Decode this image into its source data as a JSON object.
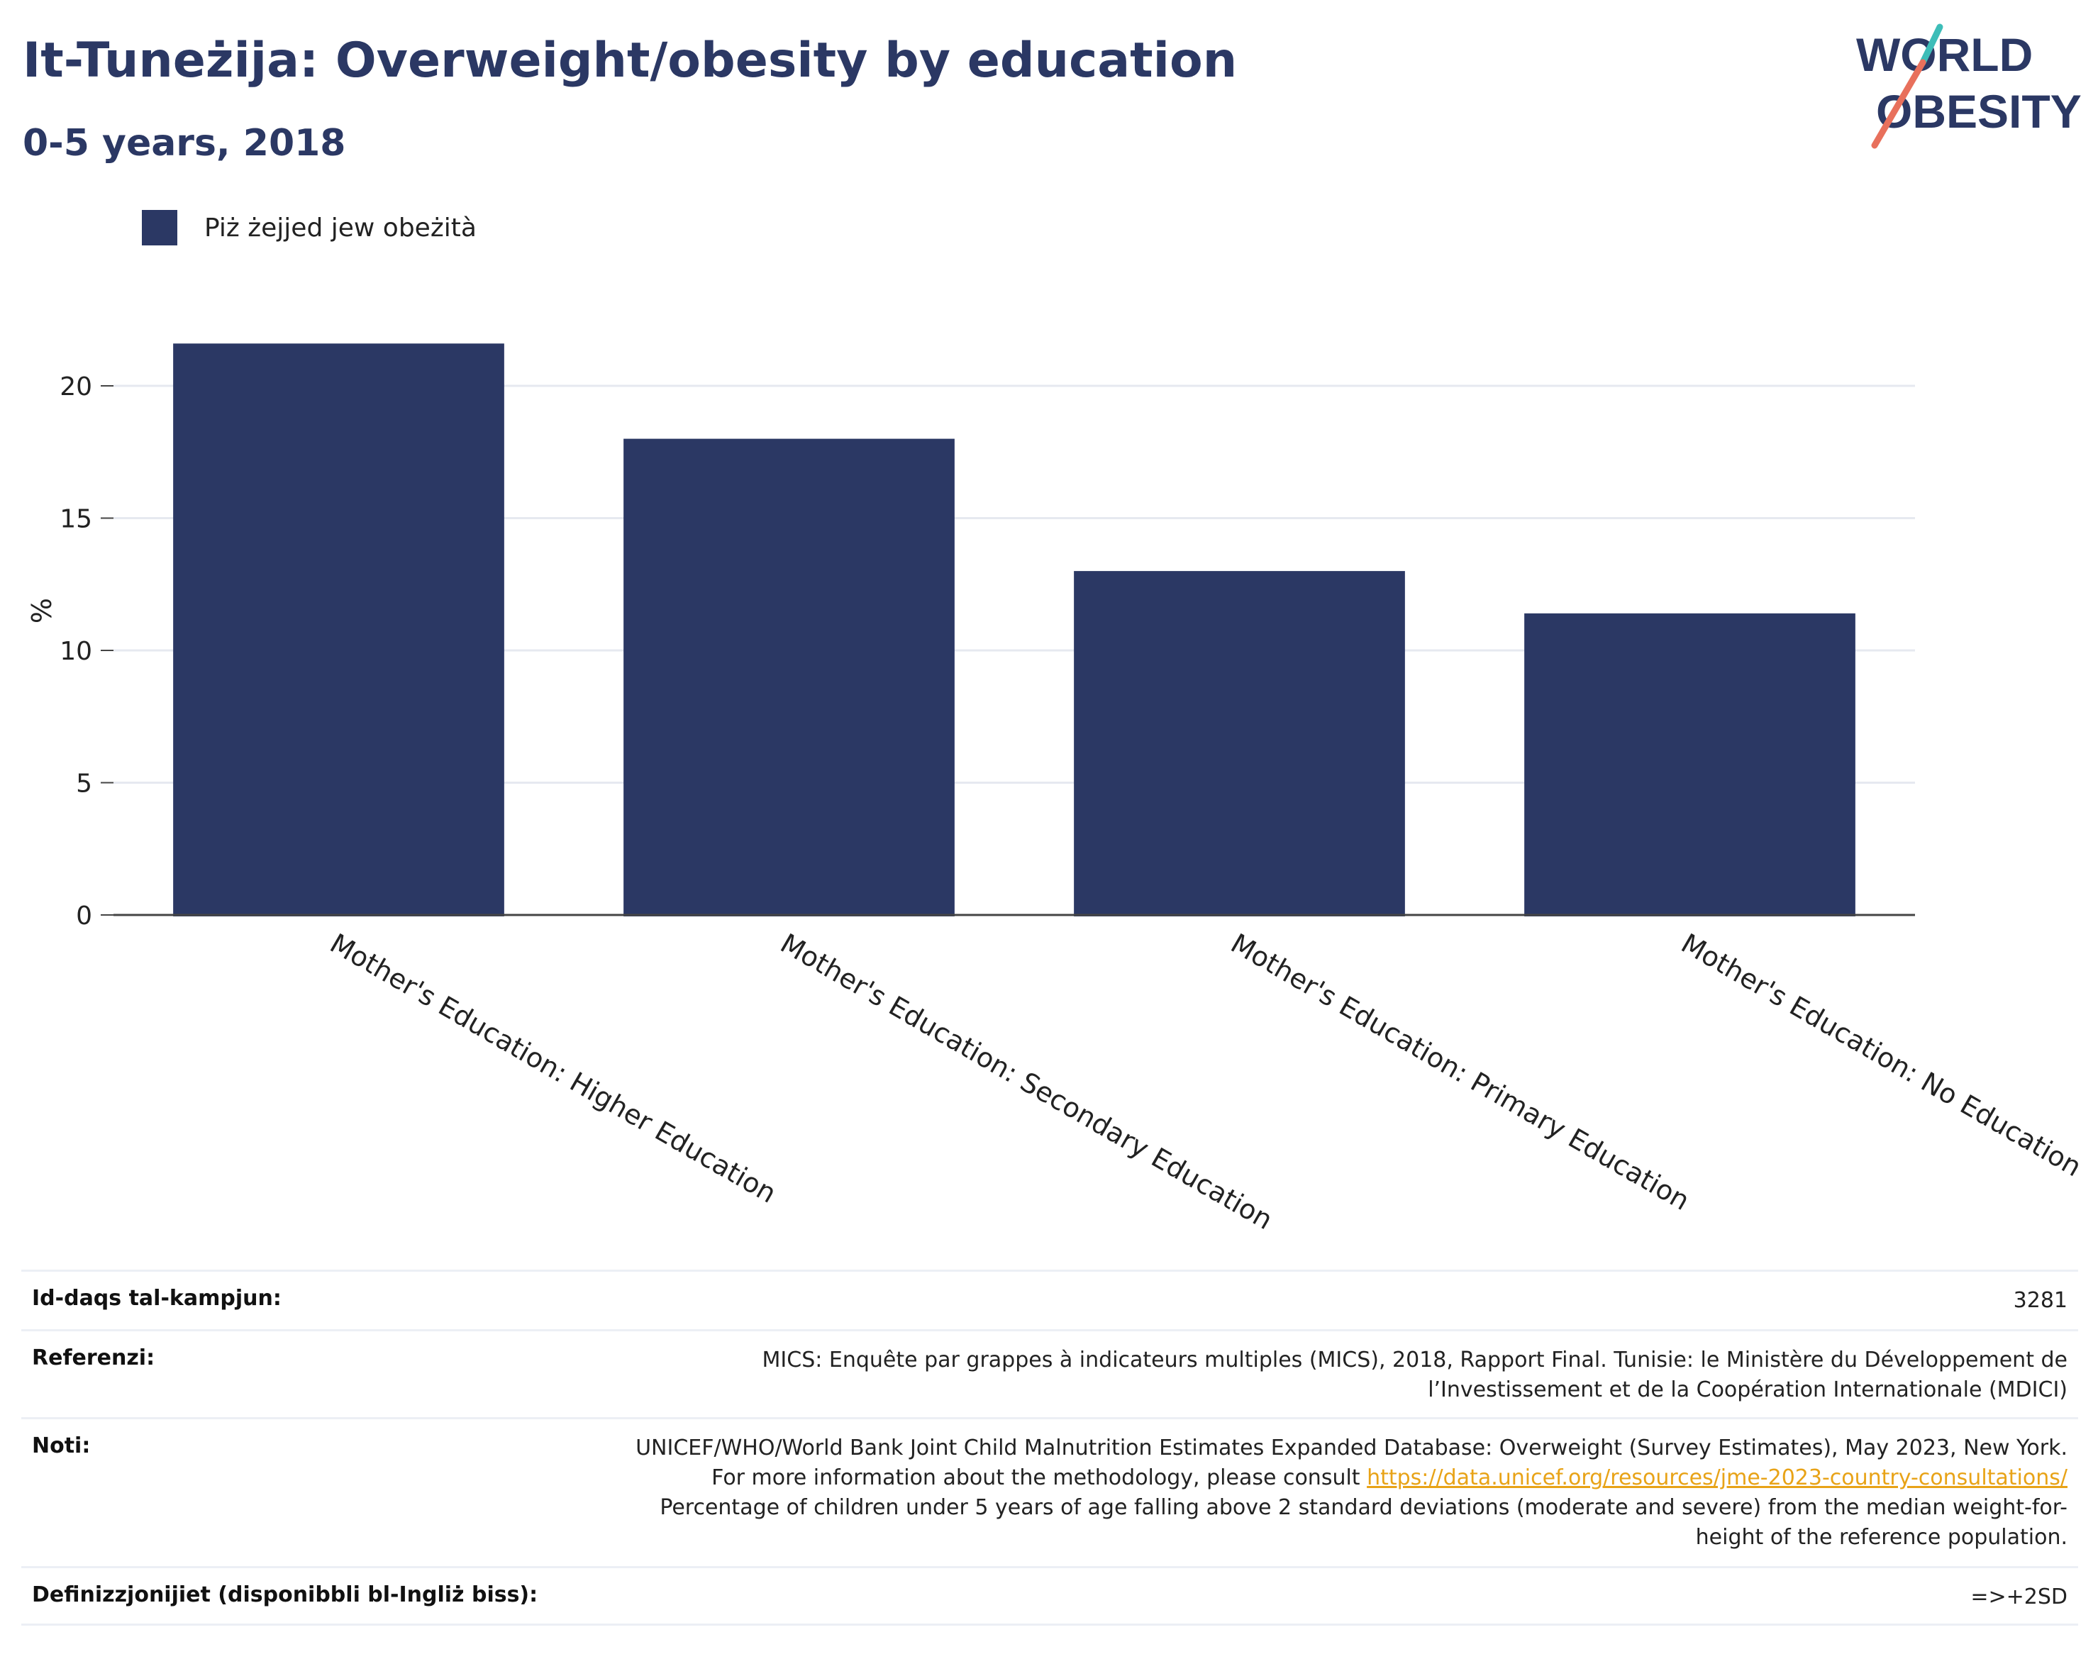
{
  "header": {
    "title": "It-Tuneżija: Overweight/obesity by education",
    "subtitle": "0-5 years, 2018"
  },
  "logo": {
    "line1": "WORLD",
    "line2": "OBESITY",
    "accent_colors": [
      "#3dbdb8",
      "#e8705c"
    ]
  },
  "legend": {
    "label": "Piż żejjed jew obeżità",
    "color": "#2b3864"
  },
  "chart_data": {
    "type": "bar",
    "categories": [
      "Mother's Education: Higher Education",
      "Mother's Education: Secondary Education",
      "Mother's Education: Primary Education",
      "Mother's Education: No Education"
    ],
    "series": [
      {
        "name": "Piż żejjed jew obeżità",
        "values": [
          21.6,
          18.0,
          13.0,
          11.4
        ]
      }
    ],
    "ylabel": "%",
    "ylim": [
      0,
      23
    ],
    "yticks": [
      0,
      5,
      10,
      15,
      20
    ],
    "grid": true,
    "legend_position": "top-left",
    "bar_color": "#2b3864"
  },
  "info": {
    "sample_size_label": "Id-daqs tal-kampjun:",
    "sample_size_value": "3281",
    "references_label": "Referenzi:",
    "references_value": "MICS: Enquête par grappes à indicateurs multiples (MICS), 2018, Rapport Final. Tunisie: le Ministère du Développement de l’Investissement et de la Coopération Internationale (MDICI)",
    "notes_label": "Noti:",
    "notes_before_link": "UNICEF/WHO/World Bank Joint Child Malnutrition Estimates Expanded Database: Overweight (Survey Estimates), May 2023, New York. For more information about the methodology, please consult ",
    "notes_link": "https://data.unicef.org/resources/jme-2023-country-consultations/",
    "notes_after_link": " Percentage of children under 5 years of age falling above 2 standard deviations (moderate and severe) from the median weight-for-height of the reference population.",
    "definitions_label": "Definizzjonijiet (disponibbli bl-Ingliż biss):",
    "definitions_value": "=>+2SD"
  }
}
